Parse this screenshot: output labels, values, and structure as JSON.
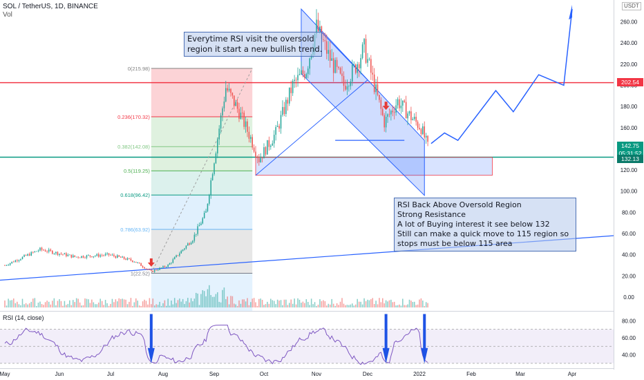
{
  "header": {
    "title": "SOL / TetherUS, 1D, BINANCE",
    "volume_label": "Vol",
    "currency": "USDT"
  },
  "rsi": {
    "label": "RSI (14, close)",
    "levels": [
      "80.00",
      "60.00",
      "40.00"
    ]
  },
  "notes": {
    "note1": [
      "Everytime RSI visit the oversold",
      "region it start a new bullish trend."
    ],
    "note2": [
      "RSI Back Above Oversold Region",
      "Strong Resistance",
      "A lot of Buying interest it see below 132",
      "Still can make a quick move to 115 region so",
      "stops must be below 115 area"
    ]
  },
  "price_boxes": {
    "resistance": "202.54",
    "last": "142.75",
    "countdown": "05:31:52",
    "support": "132.13"
  },
  "chart_data": {
    "type": "candlestick",
    "symbol": "SOL / TetherUS",
    "timeframe": "1D",
    "exchange": "BINANCE",
    "price_axis": {
      "ticks": [
        "260.00",
        "240.00",
        "220.00",
        "200.00",
        "180.00",
        "160.00",
        "140.00",
        "120.00",
        "100.00",
        "80.00",
        "60.00",
        "40.00",
        "20.00",
        "0.00"
      ]
    },
    "time_axis": {
      "ticks": [
        "May",
        "Jun",
        "Jul",
        "Aug",
        "Sep",
        "Oct",
        "Nov",
        "Dec",
        "2022",
        "Feb",
        "Mar",
        "Apr"
      ]
    },
    "fibonacci": [
      {
        "label": "0(215.98)",
        "value": 215.98
      },
      {
        "label": "0.236(170.32)",
        "value": 170.32
      },
      {
        "label": "0.382(142.08)",
        "value": 142.08
      },
      {
        "label": "0.5(119.25)",
        "value": 119.25
      },
      {
        "label": "0.618(96.42)",
        "value": 96.42
      },
      {
        "label": "0.786(63.92)",
        "value": 63.92
      },
      {
        "label": "1(22.52)",
        "value": 22.52
      }
    ],
    "horizontal_levels": [
      {
        "value": 202.54,
        "color": "#f23645"
      },
      {
        "value": 132.13,
        "color": "#089981"
      }
    ],
    "last_price": 142.75,
    "colors": {
      "up": "#26a69a",
      "down": "#ef5350",
      "trend": "#2962ff",
      "rsi": "#7e57c2"
    }
  }
}
